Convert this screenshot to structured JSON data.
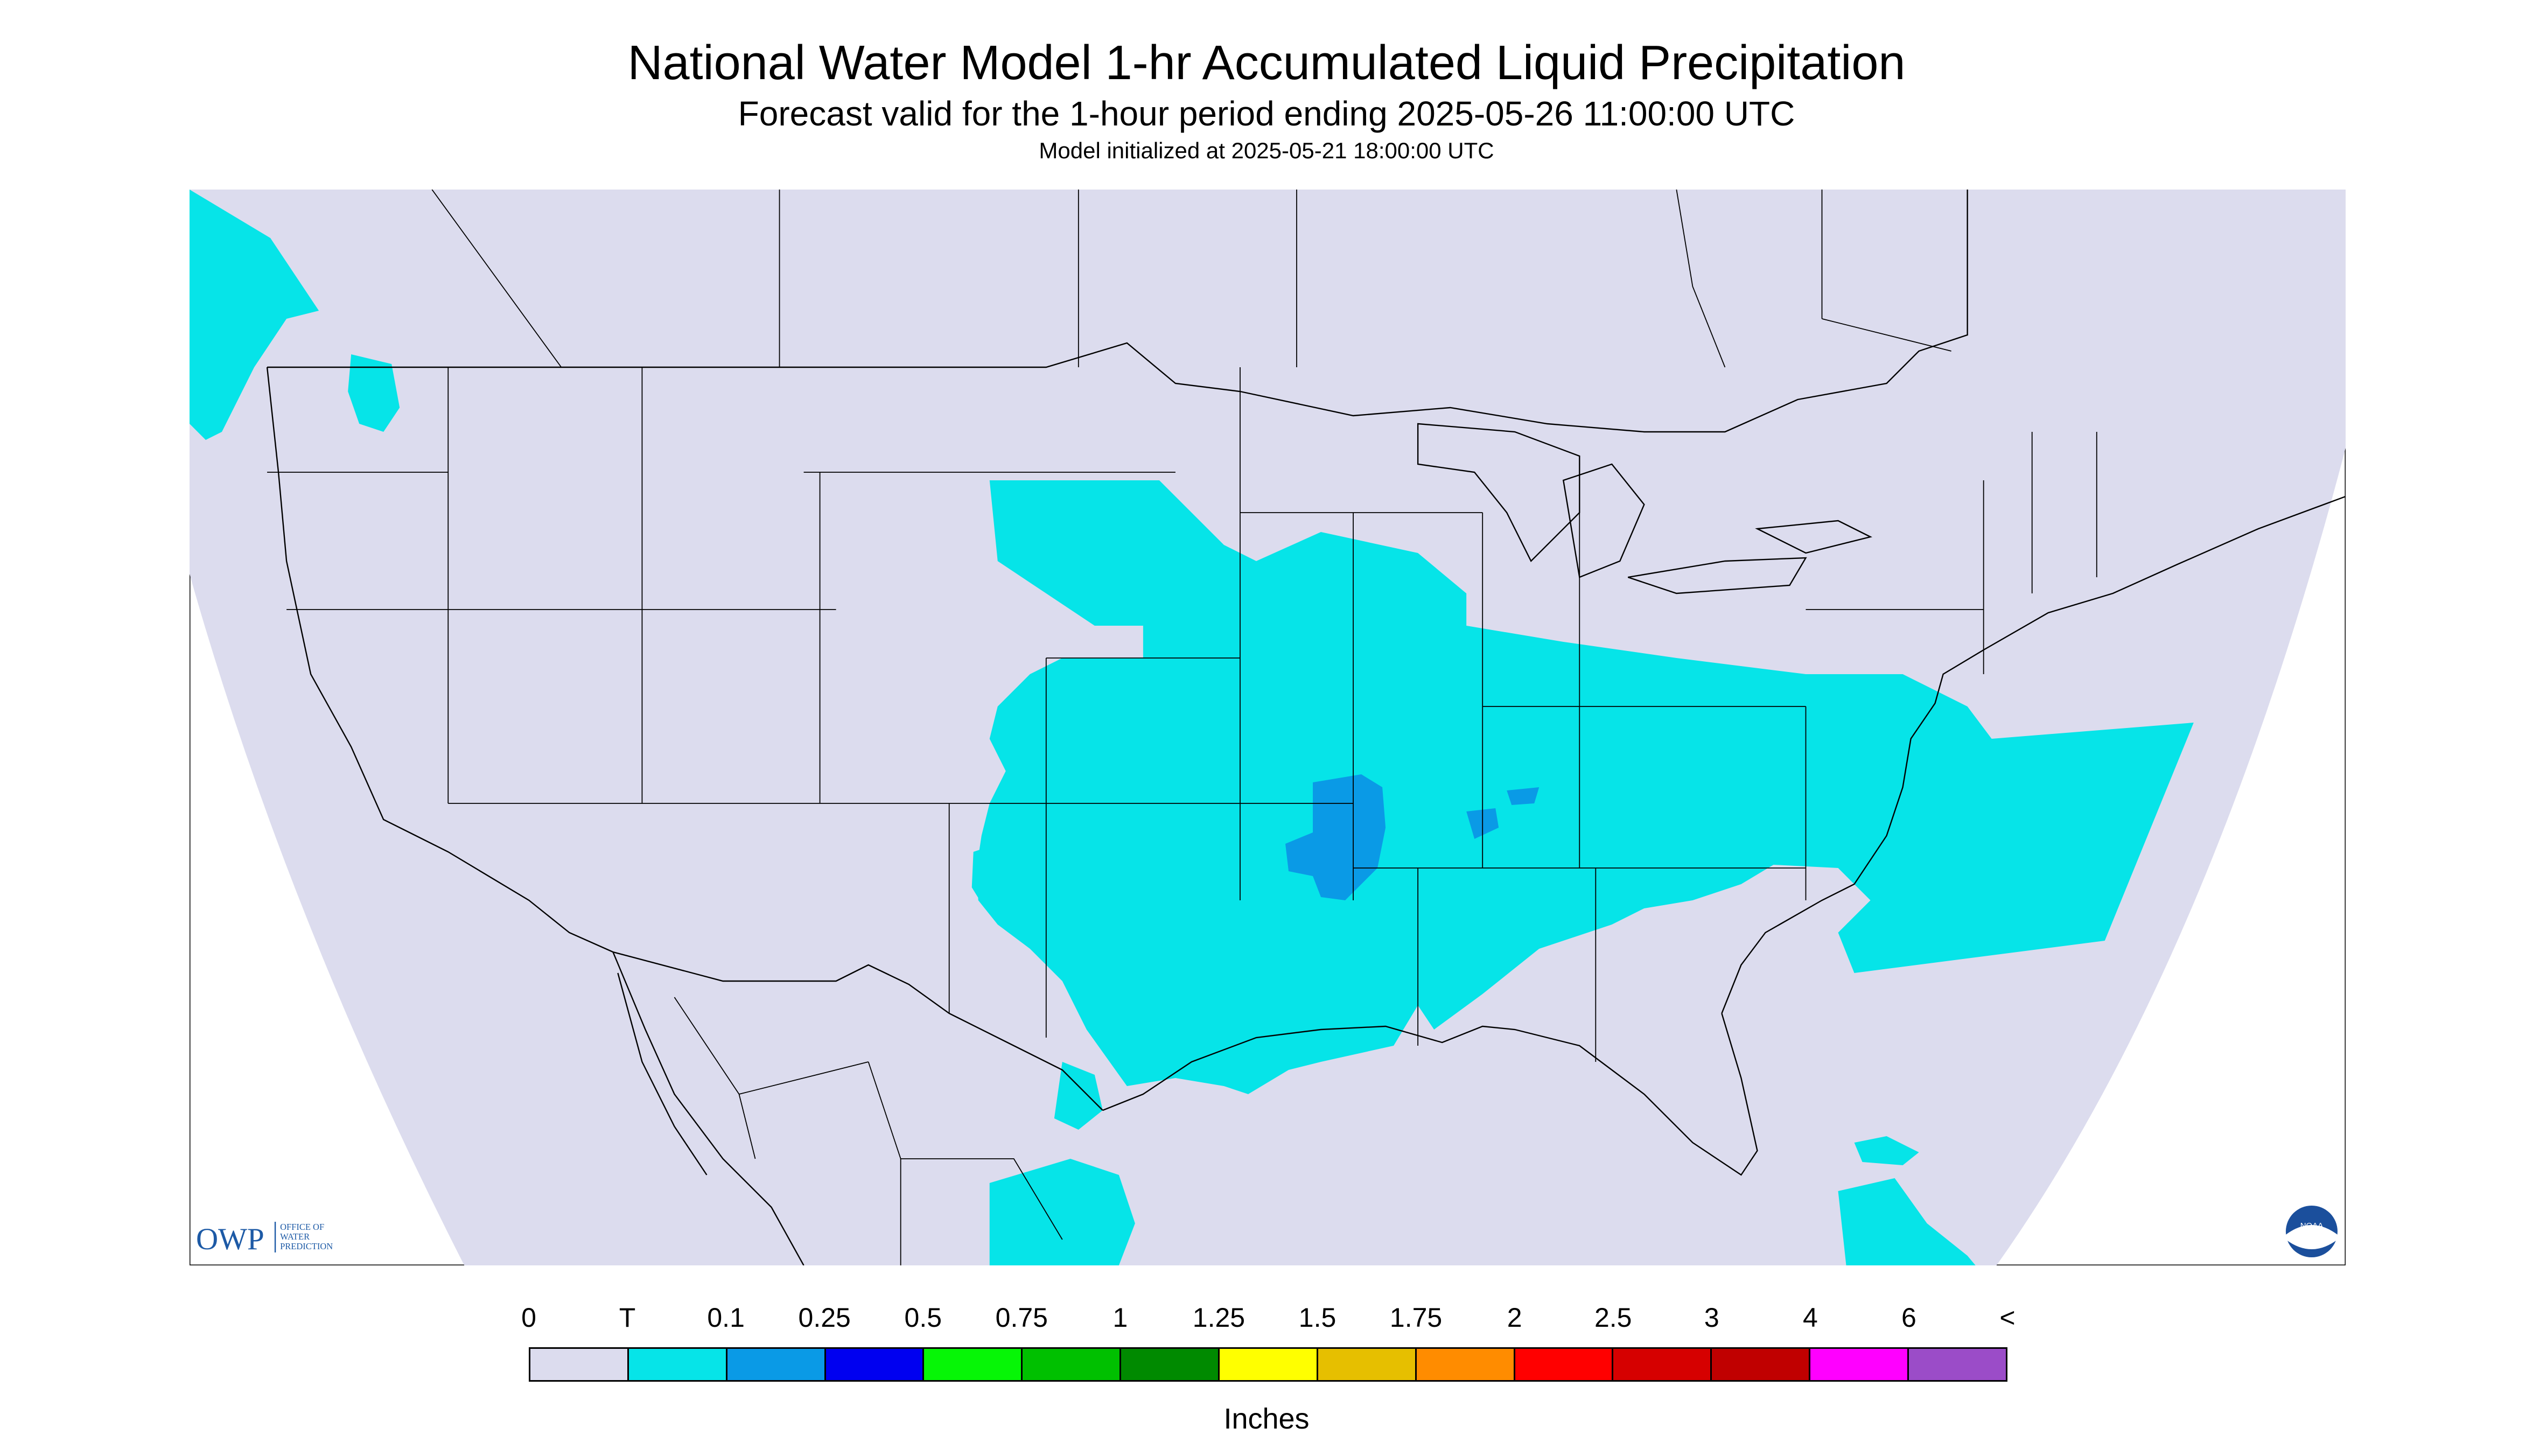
{
  "title": "National Water Model 1-hr Accumulated Liquid Precipitation",
  "subtitle": "Forecast valid for the 1-hour period ending 2025-05-26 11:00:00 UTC",
  "init_line": "Model initialized at 2025-05-21 18:00:00 UTC",
  "owp": {
    "mark": "OWP",
    "lines": [
      "OFFICE OF",
      "WATER",
      "PREDICTION"
    ]
  },
  "noaa_logo_text": "NOAA",
  "legend": {
    "labels": [
      "0",
      "T",
      "0.1",
      "0.25",
      "0.5",
      "0.75",
      "1",
      "1.25",
      "1.5",
      "1.75",
      "2",
      "2.5",
      "3",
      "4",
      "6",
      "<"
    ],
    "colors": [
      "#dcdcee",
      "#06e4e8",
      "#0a9ae6",
      "#0000f0",
      "#06f606",
      "#00c000",
      "#008a00",
      "#ffff00",
      "#e6bf00",
      "#ff8c00",
      "#ff0000",
      "#d60000",
      "#c00000",
      "#ff00ff",
      "#9b4cc8"
    ],
    "units": "Inches"
  },
  "colors": {
    "background": "#dcdcee",
    "trace": "#06e4e8",
    "light": "#0a9ae6",
    "boundary": "#000000"
  }
}
